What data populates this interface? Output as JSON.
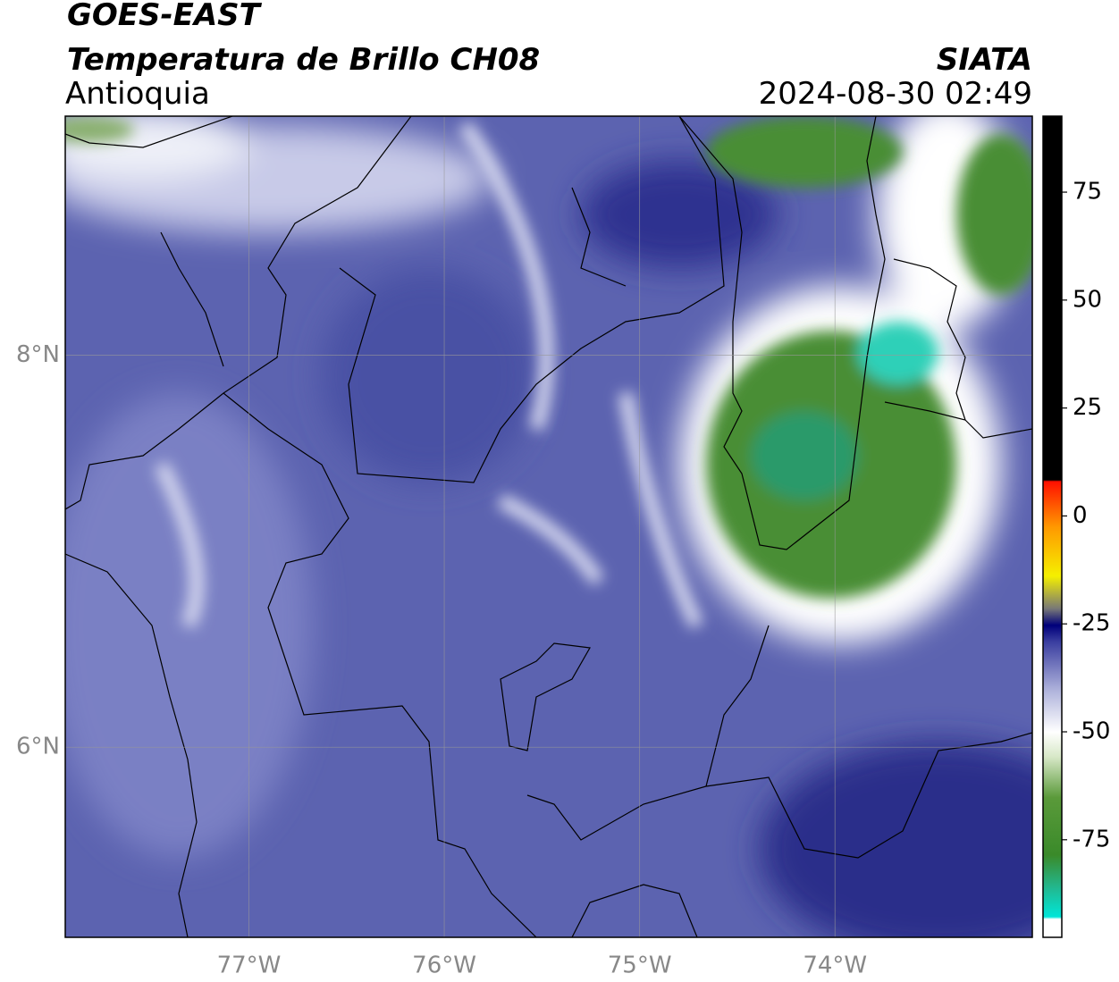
{
  "header": {
    "satellite": "GOES-EAST",
    "product": "Temperatura de Brillo CH08",
    "region": "Antioquia",
    "source": "SIATA",
    "datetime": "2024-08-30 02:49"
  },
  "map": {
    "lon_range": [
      -77.94,
      -72.99
    ],
    "lat_range": [
      5.03,
      9.22
    ],
    "lon_ticks": [
      {
        "value": -77,
        "label": "77°W"
      },
      {
        "value": -76,
        "label": "76°W"
      },
      {
        "value": -75,
        "label": "75°W"
      },
      {
        "value": -74,
        "label": "74°W"
      }
    ],
    "lat_ticks": [
      {
        "value": 8,
        "label": "8°N"
      },
      {
        "value": 6,
        "label": "6°N"
      }
    ],
    "grid": true
  },
  "colorbar": {
    "lim": [
      -97.6,
      92.6
    ],
    "ticks": [
      75,
      50,
      25,
      0,
      -25,
      -50,
      -75
    ]
  }
}
